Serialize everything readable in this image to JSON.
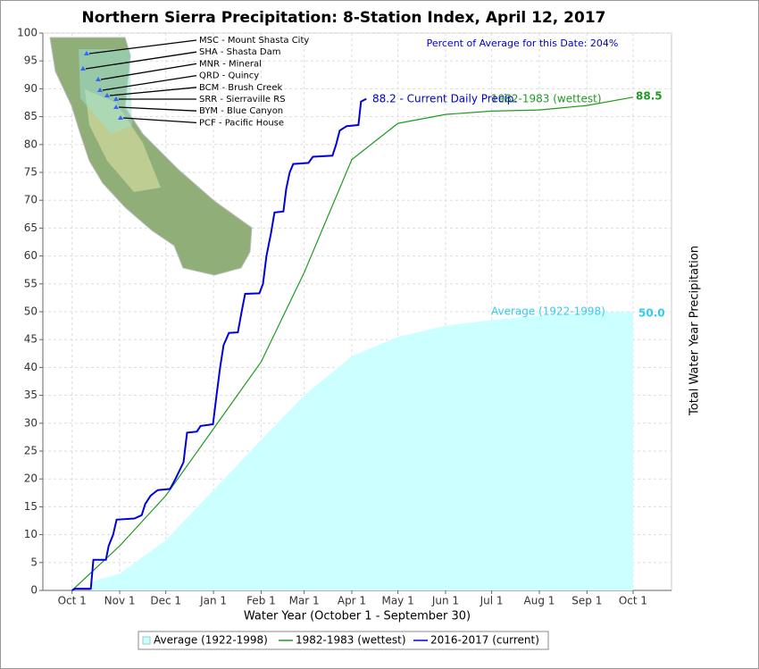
{
  "chart_data": {
    "type": "line",
    "title": "Northern Sierra Precipitation: 8-Station Index, April 12, 2017",
    "xlabel": "Water Year (October 1 - September 30)",
    "y2label": "Total Water Year Precipitation",
    "annotations": [
      "Percent of Average for this Date: 204%",
      "88.2 -  Current Daily Precip."
    ],
    "stations": [
      "MSC - Mount Shasta City",
      "SHA - Shasta Dam",
      "MNR - Mineral",
      "QRD - Quincy",
      "BCM - Brush Creek",
      "SRR - Sierraville RS",
      "BYM - Blue Canyon",
      "PCF - Pacific House"
    ],
    "xlim": [
      -19,
      390
    ],
    "xticks": [
      {
        "value": 0,
        "label": "Oct 1"
      },
      {
        "value": 31,
        "label": "Nov 1"
      },
      {
        "value": 61,
        "label": "Dec 1"
      },
      {
        "value": 92,
        "label": "Jan 1"
      },
      {
        "value": 123,
        "label": "Feb 1"
      },
      {
        "value": 151,
        "label": "Mar 1"
      },
      {
        "value": 182,
        "label": "Apr 1"
      },
      {
        "value": 212,
        "label": "May 1"
      },
      {
        "value": 243,
        "label": "Jun 1"
      },
      {
        "value": 273,
        "label": "Jul 1"
      },
      {
        "value": 304,
        "label": "Aug 1"
      },
      {
        "value": 335,
        "label": "Sep 1"
      },
      {
        "value": 365,
        "label": "Oct 1"
      }
    ],
    "ylim": [
      0,
      100
    ],
    "yticks": [
      0,
      5,
      10,
      15,
      20,
      25,
      30,
      35,
      40,
      45,
      50,
      55,
      60,
      65,
      70,
      75,
      80,
      85,
      90,
      95,
      100
    ],
    "grid": true,
    "series": [
      {
        "name": "Average (1922-1998)",
        "kind": "area",
        "color": "#ccffff",
        "label_color": "#33ccee",
        "end_label": "50.0",
        "x": [
          12,
          31,
          61,
          92,
          123,
          151,
          182,
          212,
          243,
          273,
          304,
          335,
          365
        ],
        "values": [
          1.5,
          3,
          9,
          18,
          27,
          35,
          42,
          45.5,
          47.5,
          48.5,
          49.3,
          49.8,
          50.0
        ]
      },
      {
        "name": "1982-1983 (wettest)",
        "kind": "line",
        "color": "#229922",
        "end_label": "88.5",
        "x": [
          0,
          31,
          61,
          92,
          123,
          151,
          182,
          212,
          243,
          273,
          304,
          335,
          365
        ],
        "values": [
          0,
          8,
          17,
          29,
          41,
          57,
          77.3,
          83.8,
          85.4,
          86,
          86.2,
          87,
          88.5
        ]
      },
      {
        "name": "2016-2017 (current)",
        "kind": "line",
        "color": "#0000dd",
        "x": [
          0,
          1.7,
          12.2,
          13.9,
          22,
          23.8,
          26.7,
          29,
          40.6,
          45.3,
          47.6,
          51.1,
          55.7,
          63.8,
          67.3,
          72.5,
          74.8,
          81.2,
          83.6,
          91.7,
          94,
          96.3,
          98.6,
          102.1,
          107.9,
          110.3,
          112.6,
          121.9,
          124.2,
          126.5,
          129.4,
          131.7,
          137.5,
          139.3,
          141.6,
          143.9,
          153.8,
          156.7,
          169.4,
          171.8,
          174.1,
          178.7,
          186.3,
          188,
          191.5
        ],
        "values": [
          0,
          0.3,
          0.3,
          5.5,
          5.5,
          8,
          10,
          12.7,
          12.9,
          13.5,
          15.5,
          17,
          18,
          18.2,
          20,
          23,
          28.3,
          28.5,
          29.5,
          29.8,
          35,
          40,
          44,
          46.2,
          46.3,
          50,
          53.2,
          53.3,
          55,
          60,
          64,
          67.8,
          68,
          72,
          75,
          76.5,
          76.7,
          77.8,
          78,
          80,
          82.5,
          83.3,
          83.5,
          87.7,
          88.2
        ]
      }
    ]
  }
}
